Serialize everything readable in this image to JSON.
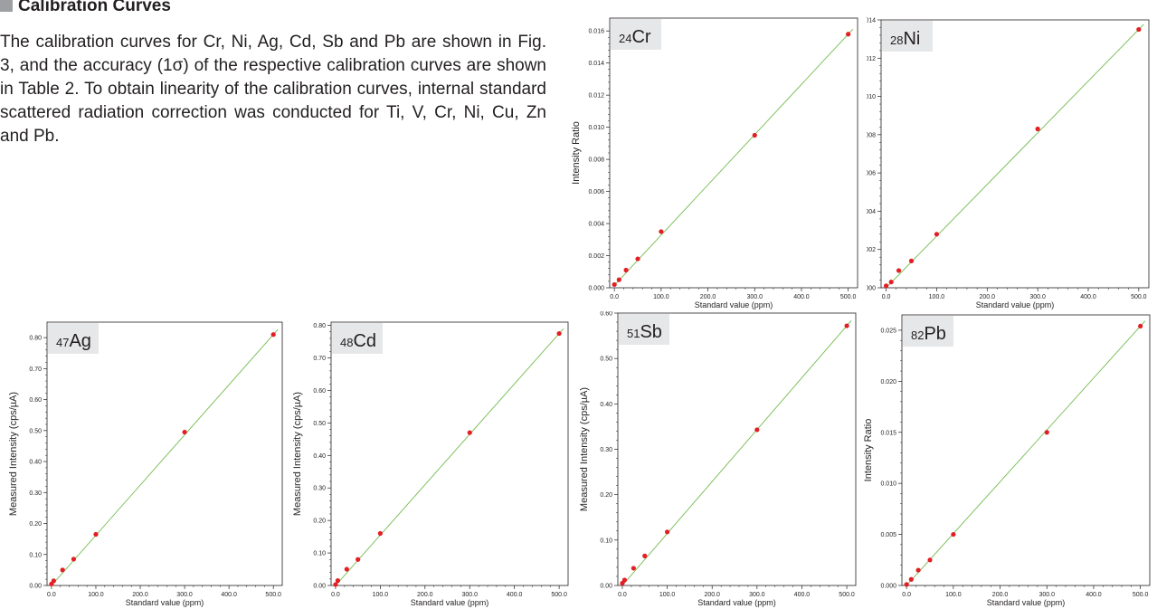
{
  "section": {
    "title": "Calibration Curves",
    "paragraph": "The calibration curves for Cr, Ni, Ag, Cd, Sb and Pb are shown in Fig. 3, and the accuracy (1σ) of the respective calibration curves are shown in Table 2. To obtain linearity of the calibration curves, internal standard scattered radiation correction was conducted for Ti, V, Cr, Ni, Cu, Zn and Pb."
  },
  "colors": {
    "line": "#72bb4f",
    "point": "#e31e24",
    "axis": "#231f20",
    "label_box": "#e6e7e8",
    "title_square": "#9d9fa2"
  },
  "chart_data": [
    {
      "type": "scatter",
      "isotope": "24",
      "element": "Cr",
      "xlabel": "Standard value (ppm)",
      "ylabel": "Intensity Ratio",
      "x_ticks": [
        "0.0",
        "100.0",
        "200.0",
        "300.0",
        "400.0",
        "500.0"
      ],
      "y_ticks": [
        "0.000",
        "0.002",
        "0.004",
        "0.006",
        "0.008",
        "0.010",
        "0.012",
        "0.014",
        "0.016"
      ],
      "xlim": [
        -10,
        520
      ],
      "ylim": [
        0,
        0.0168
      ],
      "x": [
        0,
        10,
        25,
        50,
        100,
        300,
        500
      ],
      "y": [
        0.0002,
        0.0005,
        0.0011,
        0.0018,
        0.0035,
        0.0095,
        0.0158
      ],
      "fit_line": [
        [
          0,
          0.00015
        ],
        [
          500,
          0.0158
        ]
      ]
    },
    {
      "type": "scatter",
      "isotope": "28",
      "element": "Ni",
      "xlabel": "Standard value (ppm)",
      "ylabel": "Intensity Ratio",
      "x_ticks": [
        "0.0",
        "100.0",
        "200.0",
        "300.0",
        "400.0",
        "500.0"
      ],
      "y_ticks": [
        "0.000",
        "0.002",
        "0.004",
        "0.006",
        "0.008",
        "0.010",
        "0.012",
        "0.014"
      ],
      "xlim": [
        -10,
        520
      ],
      "ylim": [
        0,
        0.014
      ],
      "x": [
        0,
        10,
        25,
        50,
        100,
        300,
        500
      ],
      "y": [
        0.0001,
        0.0003,
        0.0009,
        0.0014,
        0.0028,
        0.0083,
        0.0135
      ],
      "fit_line": [
        [
          0,
          0.0
        ],
        [
          500,
          0.0135
        ]
      ]
    },
    {
      "type": "scatter",
      "isotope": "47",
      "element": "Ag",
      "xlabel": "Standard value (ppm)",
      "ylabel": "Measured Intensity (cps/µA)",
      "x_ticks": [
        "0.0",
        "100.0",
        "200.0",
        "300.0",
        "400.0",
        "500.0"
      ],
      "y_ticks": [
        "0.00",
        "0.10",
        "0.20",
        "0.30",
        "0.40",
        "0.50",
        "0.60",
        "0.70",
        "0.80"
      ],
      "xlim": [
        -10,
        520
      ],
      "ylim": [
        0,
        0.85
      ],
      "x": [
        0,
        5,
        25,
        50,
        100,
        300,
        500
      ],
      "y": [
        0.005,
        0.015,
        0.05,
        0.085,
        0.165,
        0.495,
        0.81
      ],
      "fit_line": [
        [
          0,
          0.0
        ],
        [
          500,
          0.81
        ]
      ]
    },
    {
      "type": "scatter",
      "isotope": "48",
      "element": "Cd",
      "xlabel": "Standard value (ppm)",
      "ylabel": "Measured Intensity (cps/µA)",
      "x_ticks": [
        "0.0",
        "100.0",
        "200.0",
        "300.0",
        "400.0",
        "500.0"
      ],
      "y_ticks": [
        "0.00",
        "0.10",
        "0.20",
        "0.30",
        "0.40",
        "0.50",
        "0.60",
        "0.70",
        "0.80"
      ],
      "xlim": [
        -10,
        520
      ],
      "ylim": [
        0,
        0.81
      ],
      "x": [
        0,
        5,
        25,
        50,
        100,
        300,
        500
      ],
      "y": [
        0.003,
        0.015,
        0.05,
        0.08,
        0.16,
        0.47,
        0.775
      ],
      "fit_line": [
        [
          0,
          0.0
        ],
        [
          500,
          0.775
        ]
      ]
    },
    {
      "type": "scatter",
      "isotope": "51",
      "element": "Sb",
      "xlabel": "Standard value (ppm)",
      "ylabel": "Measured Intensity (cps/µA)",
      "x_ticks": [
        "0.0",
        "100.0",
        "200.0",
        "300.0",
        "400.0",
        "500.0"
      ],
      "y_ticks": [
        "0.00",
        "0.10",
        "0.20",
        "0.30",
        "0.40",
        "0.50",
        "0.60"
      ],
      "xlim": [
        -10,
        520
      ],
      "ylim": [
        0,
        0.6
      ],
      "x": [
        0,
        5,
        25,
        50,
        100,
        300,
        500
      ],
      "y": [
        0.005,
        0.012,
        0.038,
        0.065,
        0.118,
        0.343,
        0.572
      ],
      "fit_line": [
        [
          0,
          0.0
        ],
        [
          500,
          0.572
        ]
      ]
    },
    {
      "type": "scatter",
      "isotope": "82",
      "element": "Pb",
      "xlabel": "Standard value (ppm)",
      "ylabel": "Intensity Ratio",
      "x_ticks": [
        "0.0",
        "100.0",
        "200.0",
        "300.0",
        "400.0",
        "500.0"
      ],
      "y_ticks": [
        "0.000",
        "0.005",
        "0.010",
        "0.015",
        "0.020",
        "0.025"
      ],
      "xlim": [
        -10,
        520
      ],
      "ylim": [
        0,
        0.0265
      ],
      "x": [
        0,
        10,
        25,
        50,
        100,
        300,
        500
      ],
      "y": [
        0.0001,
        0.0006,
        0.0015,
        0.0025,
        0.005,
        0.015,
        0.0254
      ],
      "fit_line": [
        [
          0,
          0.0
        ],
        [
          500,
          0.0254
        ]
      ]
    }
  ]
}
